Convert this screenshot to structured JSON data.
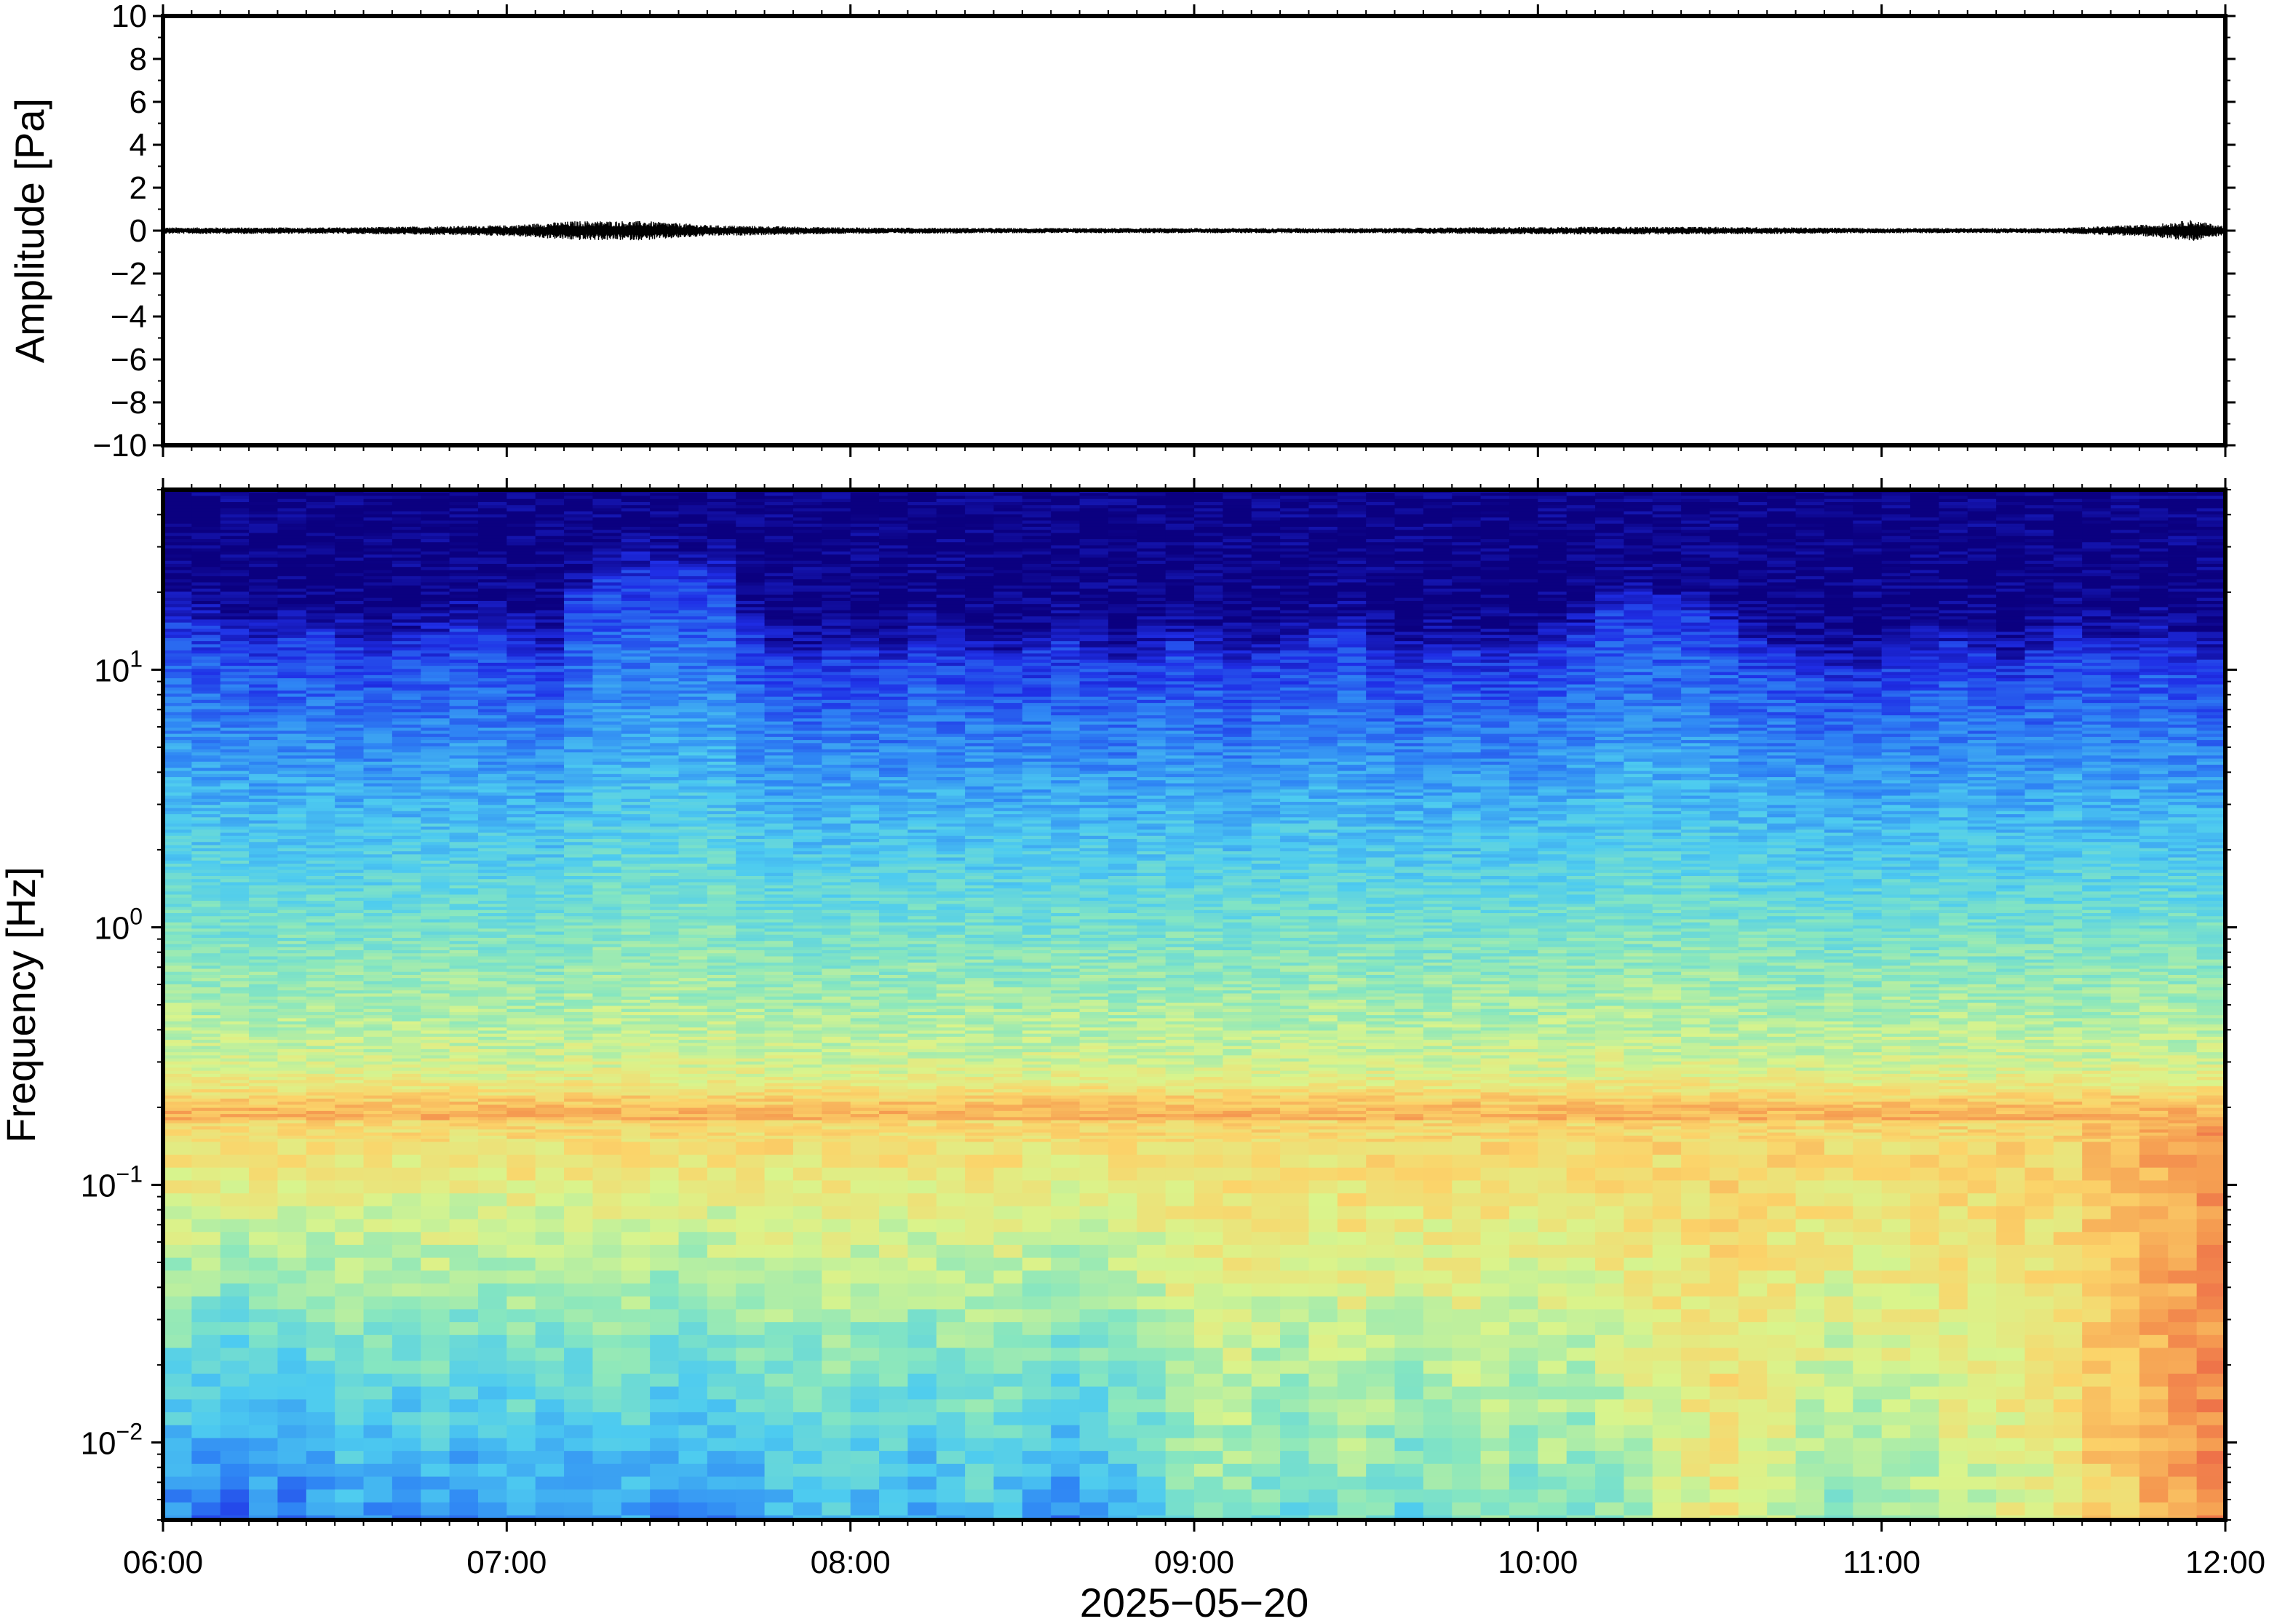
{
  "chart_data": [
    {
      "type": "line",
      "panel": "waveform",
      "ylabel": "Amplitude [Pa]",
      "ylim": [
        -10,
        10
      ],
      "yticks": [
        10,
        8,
        6,
        4,
        2,
        0,
        -2,
        -4,
        -6,
        -8,
        -10
      ],
      "ytick_labels": [
        "10",
        "8",
        "6",
        "4",
        "2",
        "0",
        "−2",
        "−4",
        "−6",
        "−8",
        "−10"
      ],
      "xlim": [
        "06:00",
        "12:00"
      ],
      "series": [
        {
          "color": "#000000",
          "x_hours": [
            6.0,
            6.5,
            7.0,
            7.2,
            7.4,
            7.6,
            8.0,
            8.5,
            9.0,
            9.5,
            10.0,
            10.5,
            11.0,
            11.5,
            11.8,
            11.9,
            12.0
          ],
          "envelope": [
            0.15,
            0.15,
            0.25,
            0.45,
            0.45,
            0.25,
            0.15,
            0.12,
            0.12,
            0.12,
            0.18,
            0.18,
            0.12,
            0.12,
            0.3,
            0.5,
            0.2
          ]
        }
      ]
    },
    {
      "type": "heatmap",
      "panel": "spectrogram",
      "ylabel": "Frequency [Hz]",
      "yscale": "log",
      "ylim": [
        0.005,
        50
      ],
      "yticks": [
        0.01,
        0.1,
        1,
        10
      ],
      "ytick_labels": [
        {
          "base": "10",
          "exp": "−2"
        },
        {
          "base": "10",
          "exp": "−1"
        },
        {
          "base": "10",
          "exp": "0"
        },
        {
          "base": "10",
          "exp": "1"
        }
      ],
      "xlabel": "2025−05−20",
      "xlim": [
        "06:00",
        "12:00"
      ],
      "xticks": [
        "06:00",
        "07:00",
        "08:00",
        "09:00",
        "10:00",
        "11:00",
        "12:00"
      ],
      "colormap": [
        "#0b0080",
        "#1f2ee6",
        "#2f86f4",
        "#4dcbf0",
        "#86e6c0",
        "#d9f48c",
        "#fbd46a",
        "#f59a50",
        "#ea5a45"
      ],
      "time_columns": 72,
      "high_frequency_edge_hz": [
        16,
        15,
        14,
        13,
        14,
        14,
        13,
        12,
        13,
        14,
        15,
        14,
        13,
        12,
        20,
        24,
        25,
        25,
        25,
        24,
        14,
        12,
        11,
        12,
        12,
        11,
        13,
        12,
        12,
        11,
        12,
        13,
        12,
        11,
        12,
        13,
        12,
        11,
        12,
        13,
        14,
        14,
        12,
        11,
        12,
        12,
        11,
        12,
        13,
        14,
        18,
        19,
        18,
        17,
        15,
        13,
        12,
        11,
        10,
        10,
        11,
        12,
        13,
        12,
        11,
        12,
        14,
        13,
        12,
        13,
        12,
        11
      ],
      "microseism_peak_hz": 0.18,
      "low_frequency_energy": [
        0.3,
        0.25,
        0.2,
        0.3,
        0.25,
        0.3,
        0.35,
        0.3,
        0.3,
        0.35,
        0.3,
        0.3,
        0.35,
        0.3,
        0.3,
        0.35,
        0.35,
        0.3,
        0.3,
        0.3,
        0.35,
        0.4,
        0.4,
        0.45,
        0.4,
        0.4,
        0.35,
        0.4,
        0.45,
        0.4,
        0.35,
        0.3,
        0.35,
        0.4,
        0.45,
        0.55,
        0.6,
        0.6,
        0.55,
        0.5,
        0.55,
        0.6,
        0.55,
        0.5,
        0.55,
        0.6,
        0.6,
        0.55,
        0.6,
        0.55,
        0.6,
        0.65,
        0.7,
        0.75,
        0.8,
        0.75,
        0.7,
        0.65,
        0.6,
        0.6,
        0.65,
        0.65,
        0.7,
        0.7,
        0.75,
        0.75,
        0.8,
        0.85,
        0.85,
        0.9,
        0.92,
        0.95
      ]
    }
  ]
}
